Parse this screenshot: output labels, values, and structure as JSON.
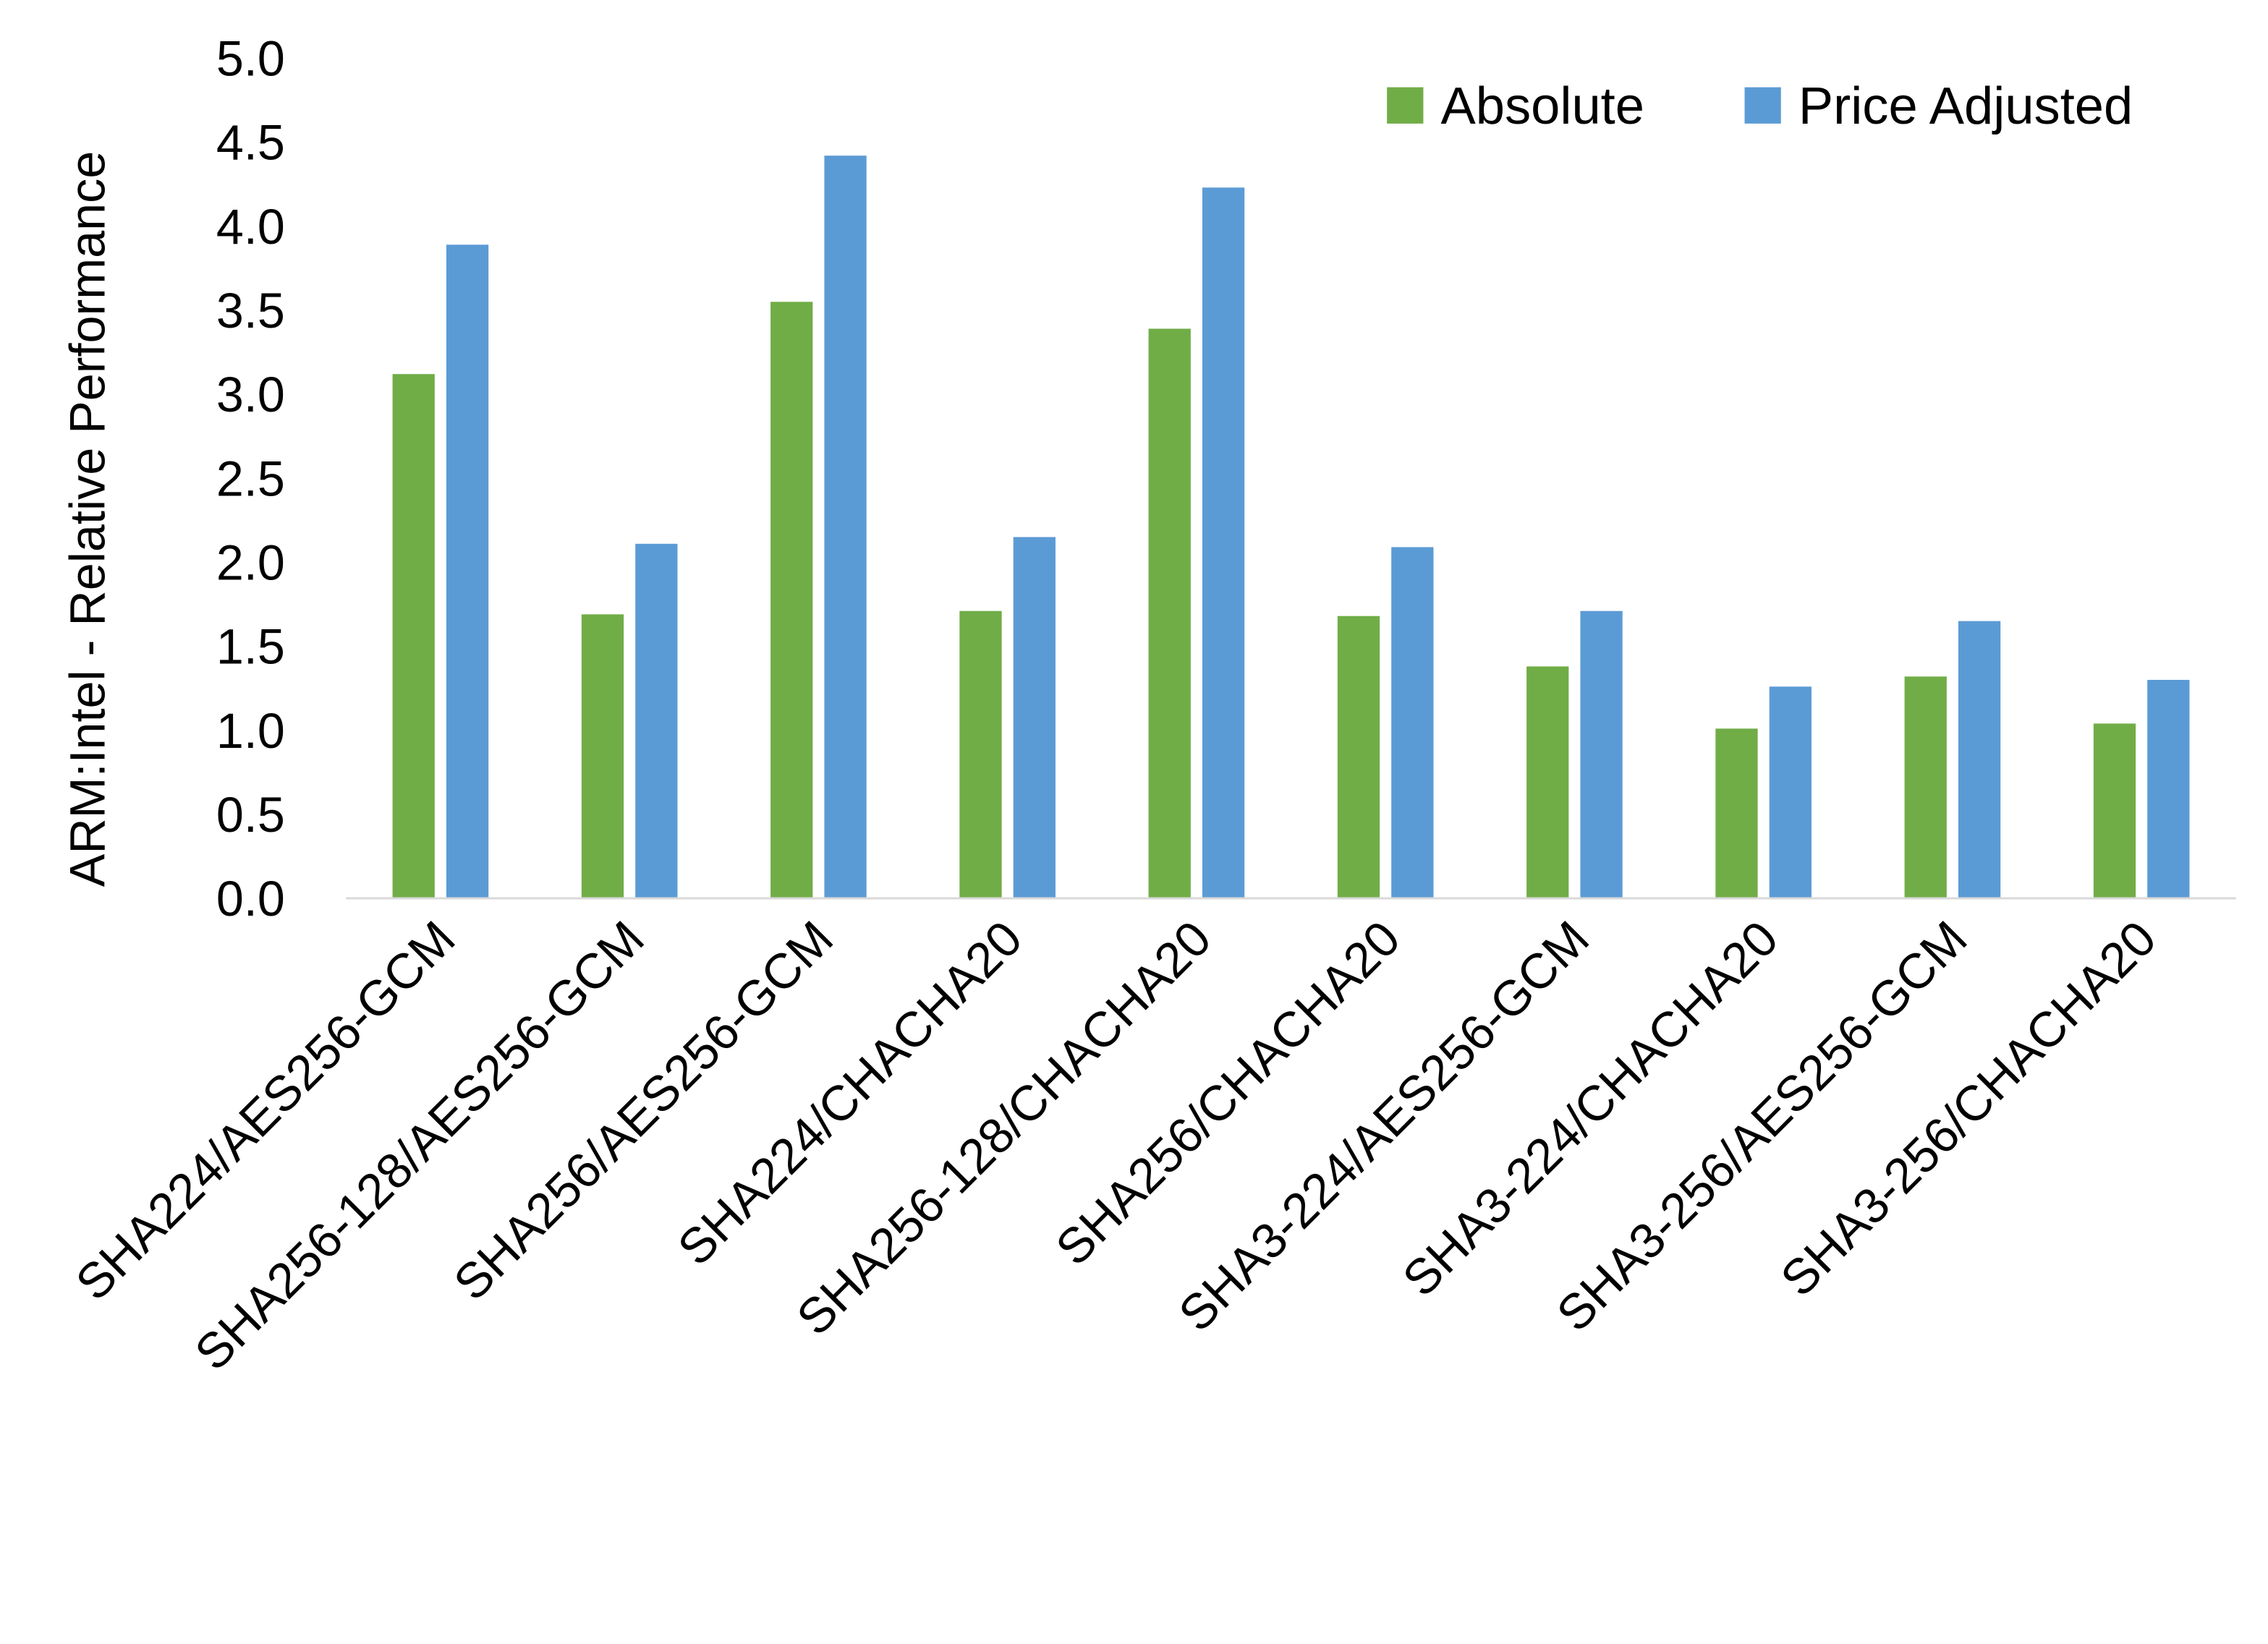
{
  "chart_data": {
    "type": "bar",
    "title": "",
    "xlabel": "",
    "ylabel": "ARM:Intel - Relative Performance",
    "ylim": [
      0,
      5
    ],
    "yticks": [
      "0.0",
      "0.5",
      "1.0",
      "1.5",
      "2.0",
      "2.5",
      "3.0",
      "3.5",
      "4.0",
      "4.5",
      "5.0"
    ],
    "grid": false,
    "legend_position": "top-right",
    "categories": [
      "SHA224/AES256-GCM",
      "SHA256-128/AES256-GCM",
      "SHA256/AES256-GCM",
      "SHA224/CHACHA20",
      "SHA256-128/CHACHA20",
      "SHA256/CHACHA20",
      "SHA3-224/AES256-GCM",
      "SHA3-224/CHACHA20",
      "SHA3-256/AES256-GCM",
      "SHA3-256/CHACHA20"
    ],
    "series": [
      {
        "name": "Absolute",
        "color": "#70AD47",
        "values": [
          3.12,
          1.69,
          3.55,
          1.71,
          3.39,
          1.68,
          1.38,
          1.01,
          1.32,
          1.04
        ]
      },
      {
        "name": "Price Adjusted",
        "color": "#5B9BD5",
        "values": [
          3.89,
          2.11,
          4.42,
          2.15,
          4.23,
          2.09,
          1.71,
          1.26,
          1.65,
          1.3
        ]
      }
    ]
  }
}
